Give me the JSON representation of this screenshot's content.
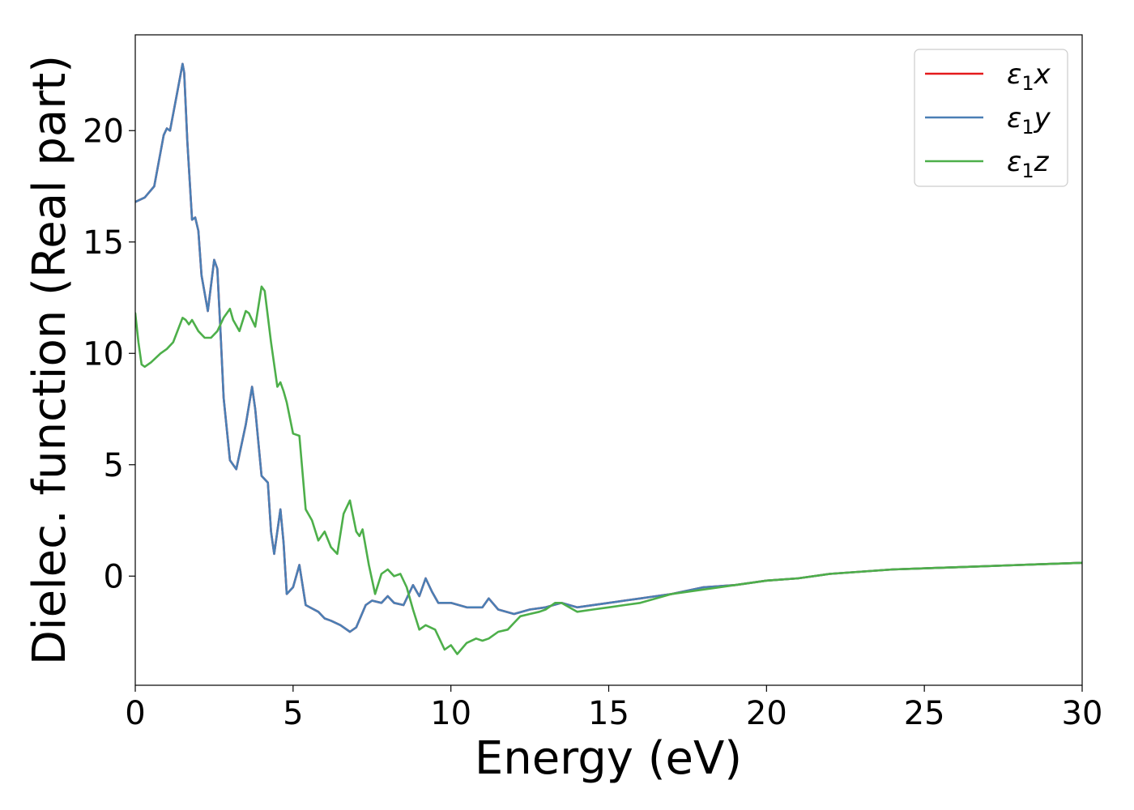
{
  "chart_data": {
    "type": "line",
    "xlabel": "Energy (eV)",
    "ylabel": "Dielec. function (Real part)",
    "xlim": [
      0,
      30
    ],
    "ylim": [
      -4.9,
      24.3
    ],
    "xticks": [
      "0",
      "5",
      "10",
      "15",
      "20",
      "25",
      "30"
    ],
    "yticks": [
      "0",
      "5",
      "10",
      "15",
      "20"
    ],
    "grid": false,
    "legend_position": "top-right",
    "series": [
      {
        "name": "ε1x",
        "legend_base": "ε",
        "legend_sub": "1",
        "legend_var": "x",
        "color": "#e41a1c",
        "x": [
          0,
          0.3,
          0.6,
          0.9,
          1.0,
          1.1,
          1.3,
          1.5,
          1.55,
          1.65,
          1.8,
          1.9,
          2.0,
          2.1,
          2.3,
          2.5,
          2.6,
          2.7,
          2.8,
          3.0,
          3.2,
          3.5,
          3.7,
          3.8,
          4.0,
          4.2,
          4.3,
          4.4,
          4.6,
          4.7,
          4.8,
          5.0,
          5.2,
          5.4,
          5.8,
          6.0,
          6.2,
          6.5,
          6.8,
          7.0,
          7.3,
          7.5,
          7.8,
          8.0,
          8.2,
          8.5,
          8.8,
          9.0,
          9.2,
          9.4,
          9.6,
          10.0,
          10.5,
          11.0,
          11.2,
          11.5,
          12.0,
          12.5,
          13.0,
          13.5,
          14.0,
          15.0,
          15.5,
          16.0,
          16.5,
          17.0,
          18.0,
          19.0,
          20.0,
          21.0,
          22.0,
          24.0,
          26.0,
          28.0,
          30.0
        ],
        "y": [
          16.8,
          17,
          17.5,
          19.8,
          20.1,
          20.0,
          21.5,
          23.0,
          22.6,
          19.5,
          16.0,
          16.1,
          15.5,
          13.5,
          11.9,
          14.2,
          13.8,
          11.0,
          8.0,
          5.2,
          4.8,
          6.8,
          8.5,
          7.5,
          4.5,
          4.2,
          2.0,
          1.0,
          3.0,
          1.5,
          -0.8,
          -0.5,
          0.5,
          -1.3,
          -1.6,
          -1.9,
          -2.0,
          -2.2,
          -2.5,
          -2.3,
          -1.3,
          -1.1,
          -1.2,
          -0.9,
          -1.2,
          -1.3,
          -0.4,
          -0.9,
          -0.1,
          -0.7,
          -1.2,
          -1.2,
          -1.4,
          -1.4,
          -1.0,
          -1.5,
          -1.7,
          -1.5,
          -1.4,
          -1.2,
          -1.4,
          -1.2,
          -1.1,
          -1.0,
          -0.9,
          -0.8,
          -0.5,
          -0.4,
          -0.2,
          -0.1,
          0.1,
          0.3,
          0.4,
          0.5,
          0.6
        ]
      },
      {
        "name": "ε1y",
        "legend_base": "ε",
        "legend_sub": "1",
        "legend_var": "y",
        "color": "#4a7fb5",
        "x": [
          0,
          0.3,
          0.6,
          0.9,
          1.0,
          1.1,
          1.3,
          1.5,
          1.55,
          1.65,
          1.8,
          1.9,
          2.0,
          2.1,
          2.3,
          2.5,
          2.6,
          2.7,
          2.8,
          3.0,
          3.2,
          3.5,
          3.7,
          3.8,
          4.0,
          4.2,
          4.3,
          4.4,
          4.6,
          4.7,
          4.8,
          5.0,
          5.2,
          5.4,
          5.8,
          6.0,
          6.2,
          6.5,
          6.8,
          7.0,
          7.3,
          7.5,
          7.8,
          8.0,
          8.2,
          8.5,
          8.8,
          9.0,
          9.2,
          9.4,
          9.6,
          10.0,
          10.5,
          11.0,
          11.2,
          11.5,
          12.0,
          12.5,
          13.0,
          13.5,
          14.0,
          15.0,
          15.5,
          16.0,
          16.5,
          17.0,
          18.0,
          19.0,
          20.0,
          21.0,
          22.0,
          24.0,
          26.0,
          28.0,
          30.0
        ],
        "y": [
          16.8,
          17,
          17.5,
          19.8,
          20.1,
          20.0,
          21.5,
          23.0,
          22.6,
          19.5,
          16.0,
          16.1,
          15.5,
          13.5,
          11.9,
          14.2,
          13.8,
          11.0,
          8.0,
          5.2,
          4.8,
          6.8,
          8.5,
          7.5,
          4.5,
          4.2,
          2.0,
          1.0,
          3.0,
          1.5,
          -0.8,
          -0.5,
          0.5,
          -1.3,
          -1.6,
          -1.9,
          -2.0,
          -2.2,
          -2.5,
          -2.3,
          -1.3,
          -1.1,
          -1.2,
          -0.9,
          -1.2,
          -1.3,
          -0.4,
          -0.9,
          -0.1,
          -0.7,
          -1.2,
          -1.2,
          -1.4,
          -1.4,
          -1.0,
          -1.5,
          -1.7,
          -1.5,
          -1.4,
          -1.2,
          -1.4,
          -1.2,
          -1.1,
          -1.0,
          -0.9,
          -0.8,
          -0.5,
          -0.4,
          -0.2,
          -0.1,
          0.1,
          0.3,
          0.4,
          0.5,
          0.6
        ]
      },
      {
        "name": "ε1z",
        "legend_base": "ε",
        "legend_sub": "1",
        "legend_var": "z",
        "color": "#4daf4a",
        "x": [
          0,
          0.1,
          0.2,
          0.3,
          0.5,
          0.8,
          1.0,
          1.2,
          1.5,
          1.6,
          1.7,
          1.8,
          2.0,
          2.2,
          2.4,
          2.6,
          2.8,
          3.0,
          3.1,
          3.3,
          3.5,
          3.6,
          3.8,
          4.0,
          4.1,
          4.3,
          4.5,
          4.6,
          4.7,
          4.8,
          5.0,
          5.2,
          5.4,
          5.6,
          5.8,
          6.0,
          6.2,
          6.4,
          6.6,
          6.8,
          7.0,
          7.1,
          7.2,
          7.4,
          7.6,
          7.8,
          8.0,
          8.2,
          8.4,
          8.6,
          8.8,
          9.0,
          9.2,
          9.5,
          9.8,
          10.0,
          10.2,
          10.5,
          10.8,
          11.0,
          11.2,
          11.5,
          11.8,
          12.0,
          12.2,
          12.5,
          12.8,
          13.0,
          13.3,
          13.5,
          14.0,
          14.5,
          15.0,
          15.5,
          16.0,
          16.5,
          17.0,
          18.0,
          19.0,
          20.0,
          21.0,
          22.0,
          24.0,
          26.0,
          28.0,
          30.0
        ],
        "y": [
          11.8,
          10.5,
          9.5,
          9.4,
          9.6,
          10.0,
          10.2,
          10.5,
          11.6,
          11.5,
          11.3,
          11.5,
          11.0,
          10.7,
          10.7,
          11.0,
          11.6,
          12.0,
          11.5,
          11.0,
          11.9,
          11.8,
          11.2,
          13.0,
          12.8,
          10.5,
          8.5,
          8.7,
          8.3,
          7.8,
          6.4,
          6.3,
          3.0,
          2.5,
          1.6,
          2.0,
          1.3,
          1.0,
          2.8,
          3.4,
          2.0,
          1.8,
          2.1,
          0.5,
          -0.8,
          0.1,
          0.3,
          0.0,
          0.1,
          -0.5,
          -1.5,
          -2.4,
          -2.2,
          -2.4,
          -3.3,
          -3.1,
          -3.5,
          -3.0,
          -2.8,
          -2.9,
          -2.8,
          -2.5,
          -2.4,
          -2.1,
          -1.8,
          -1.7,
          -1.6,
          -1.5,
          -1.2,
          -1.2,
          -1.6,
          -1.5,
          -1.4,
          -1.3,
          -1.2,
          -1.0,
          -0.8,
          -0.6,
          -0.4,
          -0.2,
          -0.1,
          0.1,
          0.3,
          0.4,
          0.5,
          0.6
        ]
      }
    ]
  }
}
